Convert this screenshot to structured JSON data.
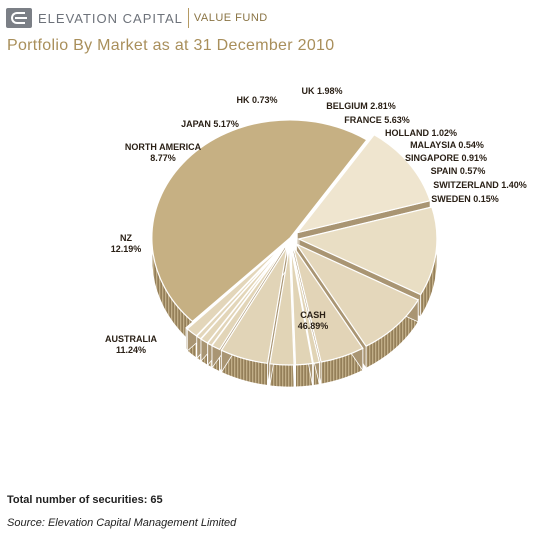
{
  "header": {
    "brand": "ELEVATION CAPITAL",
    "fund": "VALUE FUND"
  },
  "title": "Portfolio By Market as at 31 December 2010",
  "chart_data": {
    "type": "pie",
    "title": "Portfolio By Market as at 31 December 2010",
    "slices": [
      {
        "label": "CASH",
        "value_text": "46.89%",
        "value": 46.89
      },
      {
        "label": "AUSTRALIA",
        "value_text": "11.24%",
        "value": 11.24
      },
      {
        "label": "NZ",
        "value_text": "12.19%",
        "value": 12.19
      },
      {
        "label": "NORTH AMERICA",
        "value_text": "8.77%",
        "value": 8.77
      },
      {
        "label": "JAPAN",
        "value_text": "5.17%",
        "value": 5.17
      },
      {
        "label": "HK",
        "value_text": "0.73%",
        "value": 0.73
      },
      {
        "label": "UK",
        "value_text": "1.98%",
        "value": 1.98
      },
      {
        "label": "BELGIUM",
        "value_text": "2.81%",
        "value": 2.81
      },
      {
        "label": "FRANCE",
        "value_text": "5.63%",
        "value": 5.63
      },
      {
        "label": "HOLLAND",
        "value_text": "1.02%",
        "value": 1.02
      },
      {
        "label": "MALAYSIA",
        "value_text": "0.54%",
        "value": 0.54
      },
      {
        "label": "SINGAPORE",
        "value_text": "0.91%",
        "value": 0.91
      },
      {
        "label": "SPAIN",
        "value_text": "0.57%",
        "value": 0.57
      },
      {
        "label": "SWITZERLAND",
        "value_text": "1.40%",
        "value": 1.4
      },
      {
        "label": "SWEDEN",
        "value_text": "0.15%",
        "value": 0.15
      }
    ],
    "colors": {
      "top_dark": "#cbb88f",
      "top_light": "#f3ead6",
      "side": "#b09b72",
      "cash_top": "#c6b083"
    }
  },
  "footer": {
    "total": "Total number of securities: 65",
    "source": "Source: Elevation Capital Management Limited"
  }
}
